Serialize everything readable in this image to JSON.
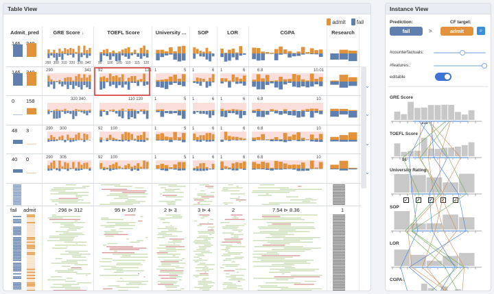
{
  "table_view": {
    "title": "Table View",
    "legend": {
      "admit": "admit",
      "fail": "fail"
    },
    "columns": [
      "Admit_pred",
      "GRE Score",
      "TOEFL Score",
      "University ...",
      "SOP",
      "LOR",
      "CGPA",
      "Research"
    ],
    "summary_row": {
      "fail_count": "146",
      "admit_count": "340"
    },
    "axis_ticks": {
      "gre": [
        "290",
        "300",
        "310",
        "320",
        "330",
        "340"
      ],
      "toefl": [
        "95",
        "100",
        "105",
        "110",
        "115",
        "120"
      ]
    },
    "rows": [
      {
        "fail": "146",
        "admit": "340",
        "gre_min": "290",
        "gre_max": "341",
        "toefl_min": "92",
        "toefl_max": "121",
        "univ_min": "1",
        "univ_max": "5",
        "sop_min": "1",
        "sop_max": "6",
        "lor_min": "1",
        "lor_max": "6",
        "cgpa_min": "6.8",
        "cgpa_max": "10.01"
      },
      {
        "fail": "0",
        "admit": "158",
        "gre_min": "",
        "gre_max": "320 340",
        "toefl_min": "",
        "toefl_max": "110 120",
        "univ_min": "1",
        "univ_max": "5",
        "sop_min": "1",
        "sop_max": "6",
        "lor_min": "1",
        "lor_max": "6",
        "cgpa_min": "6.8",
        "cgpa_max": "10"
      },
      {
        "fail": "48",
        "admit": "3",
        "gre_min": "290",
        "gre_max": "300",
        "toefl_min": "92",
        "toefl_max": "100",
        "univ_min": "1",
        "univ_max": "5",
        "sop_min": "1",
        "sop_max": "6",
        "lor_min": "1",
        "lor_max": "6",
        "cgpa_min": "6.8",
        "cgpa_max": "10"
      },
      {
        "fail": "40",
        "admit": "0",
        "gre_min": "290",
        "gre_max": "305",
        "toefl_min": "92",
        "toefl_max": "100",
        "univ_min": "1",
        "univ_max": "5",
        "sop_min": "1",
        "sop_max": "6",
        "lor_min": "1",
        "lor_max": "6",
        "cgpa_min": "6.8",
        "cgpa_max": "10"
      }
    ],
    "detail_row": {
      "fail_label": "fail",
      "admit_label": "admit",
      "gre_range": "296 ⊳ 312",
      "toefl_range": "95 ⊳ 107",
      "univ_range": "2 ⊳ 3",
      "sop_range": "3 ⊳ 4",
      "lor_value": "2",
      "cgpa_range": "7.54 ⊳ 8.36",
      "research_value": "1"
    }
  },
  "instance_view": {
    "title": "Instance View",
    "prediction_label": "Prediction:",
    "prediction_value": "fail",
    "cf_target_label": "CF target:",
    "cf_target_value": "admit",
    "arrow": ">",
    "counterfactuals_label": "#counterfactuals:",
    "counterfactuals_level": 0.55,
    "features_label": "#features.:",
    "features_level": 0.98,
    "editable_label": "editable",
    "editable_on": true,
    "features": [
      {
        "name": "GRE Score",
        "value": "310"
      },
      {
        "name": "TOEFL Score",
        "value": "96"
      },
      {
        "name": "University Rating"
      },
      {
        "name": "SOP"
      },
      {
        "name": "LOR"
      },
      {
        "name": "CGPA"
      }
    ],
    "lock_glyph": "🔒"
  },
  "colors": {
    "admit": "#e2923a",
    "fail": "#5f7fae",
    "highlight": "#f6c8c4",
    "selection": "#d62b2b",
    "accent": "#3f74d4",
    "green": "#6aa84f"
  }
}
